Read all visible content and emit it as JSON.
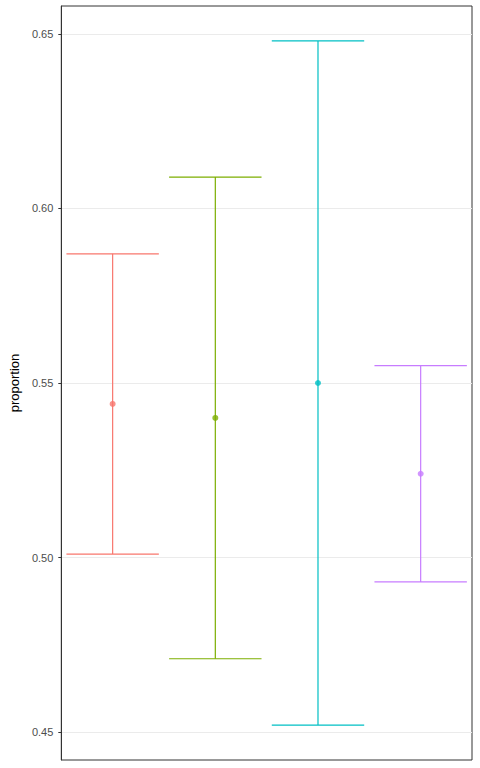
{
  "chart_data": {
    "type": "errorbar",
    "y_label": "proportion",
    "categories": [
      null,
      null,
      null,
      null
    ],
    "values": [
      0.544,
      0.54,
      0.55,
      0.524
    ],
    "lower": [
      0.501,
      0.471,
      0.452,
      0.493
    ],
    "upper": [
      0.587,
      0.609,
      0.648,
      0.555
    ],
    "colors": [
      "#F8766D",
      "#7CAE00",
      "#00BFC4",
      "#C77CFF"
    ],
    "ylim": [
      0.442,
      0.658
    ],
    "yticks": [
      0.45,
      {
        "value": 0.5,
        "label": "0.50"
      },
      0.55,
      {
        "value": 0.6,
        "label": "0.60"
      },
      0.65
    ],
    "grid": true,
    "tick_labels": "y"
  }
}
